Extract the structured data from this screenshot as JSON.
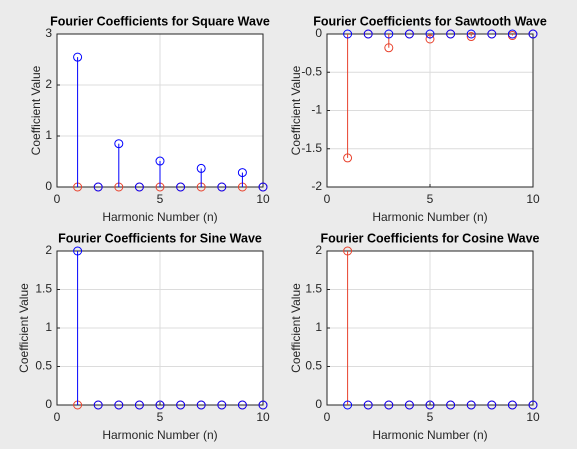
{
  "chart_data": [
    {
      "type": "stem",
      "title": "Fourier Coefficients for Square Wave",
      "xlabel": "Harmonic Number (n)",
      "ylabel": "Coefficient Value",
      "x": [
        1,
        2,
        3,
        4,
        5,
        6,
        7,
        8,
        9,
        10
      ],
      "series": [
        {
          "color": "#e8412c",
          "values": [
            0,
            0,
            0,
            0,
            0,
            0,
            0,
            0,
            0,
            0
          ]
        },
        {
          "color": "#0000ff",
          "values": [
            2.546,
            0,
            0.849,
            0,
            0.509,
            0,
            0.364,
            0,
            0.283,
            0
          ]
        }
      ],
      "xlim": [
        0,
        10
      ],
      "xticks": [
        0,
        5,
        10
      ],
      "ylim": [
        0,
        3
      ],
      "yticks": [
        0,
        1,
        2,
        3
      ],
      "grid": true
    },
    {
      "type": "stem",
      "title": "Fourier Coefficients for Sawtooth Wave",
      "xlabel": "Harmonic Number (n)",
      "ylabel": "Coefficient Value",
      "x": [
        1,
        2,
        3,
        4,
        5,
        6,
        7,
        8,
        9,
        10
      ],
      "series": [
        {
          "color": "#e8412c",
          "values": [
            -1.62,
            0,
            -0.18,
            0,
            -0.065,
            0,
            -0.033,
            0,
            -0.02,
            0
          ]
        },
        {
          "color": "#0000ff",
          "values": [
            0,
            0,
            0,
            0,
            0,
            0,
            0,
            0,
            0,
            0
          ]
        }
      ],
      "xlim": [
        0,
        10
      ],
      "xticks": [
        0,
        5,
        10
      ],
      "ylim": [
        -2,
        0
      ],
      "yticks": [
        -2,
        -1.5,
        -1,
        -0.5,
        0
      ],
      "grid": true
    },
    {
      "type": "stem",
      "title": "Fourier Coefficients for Sine Wave",
      "xlabel": "Harmonic Number (n)",
      "ylabel": "Coefficient Value",
      "x": [
        1,
        2,
        3,
        4,
        5,
        6,
        7,
        8,
        9,
        10
      ],
      "series": [
        {
          "color": "#e8412c",
          "values": [
            0,
            0,
            0,
            0,
            0,
            0,
            0,
            0,
            0,
            0
          ]
        },
        {
          "color": "#0000ff",
          "values": [
            2,
            0,
            0,
            0,
            0,
            0,
            0,
            0,
            0,
            0
          ]
        }
      ],
      "xlim": [
        0,
        10
      ],
      "xticks": [
        0,
        5,
        10
      ],
      "ylim": [
        0,
        2
      ],
      "yticks": [
        0,
        0.5,
        1,
        1.5,
        2
      ],
      "grid": true
    },
    {
      "type": "stem",
      "title": "Fourier Coefficients for Cosine Wave",
      "xlabel": "Harmonic Number (n)",
      "ylabel": "Coefficient Value",
      "x": [
        1,
        2,
        3,
        4,
        5,
        6,
        7,
        8,
        9,
        10
      ],
      "series": [
        {
          "color": "#e8412c",
          "values": [
            2,
            0,
            0,
            0,
            0,
            0,
            0,
            0,
            0,
            0
          ]
        },
        {
          "color": "#0000ff",
          "values": [
            0,
            0,
            0,
            0,
            0,
            0,
            0,
            0,
            0,
            0
          ]
        }
      ],
      "xlim": [
        0,
        10
      ],
      "xticks": [
        0,
        5,
        10
      ],
      "ylim": [
        0,
        2
      ],
      "yticks": [
        0,
        0.5,
        1,
        1.5,
        2
      ],
      "grid": true
    }
  ]
}
